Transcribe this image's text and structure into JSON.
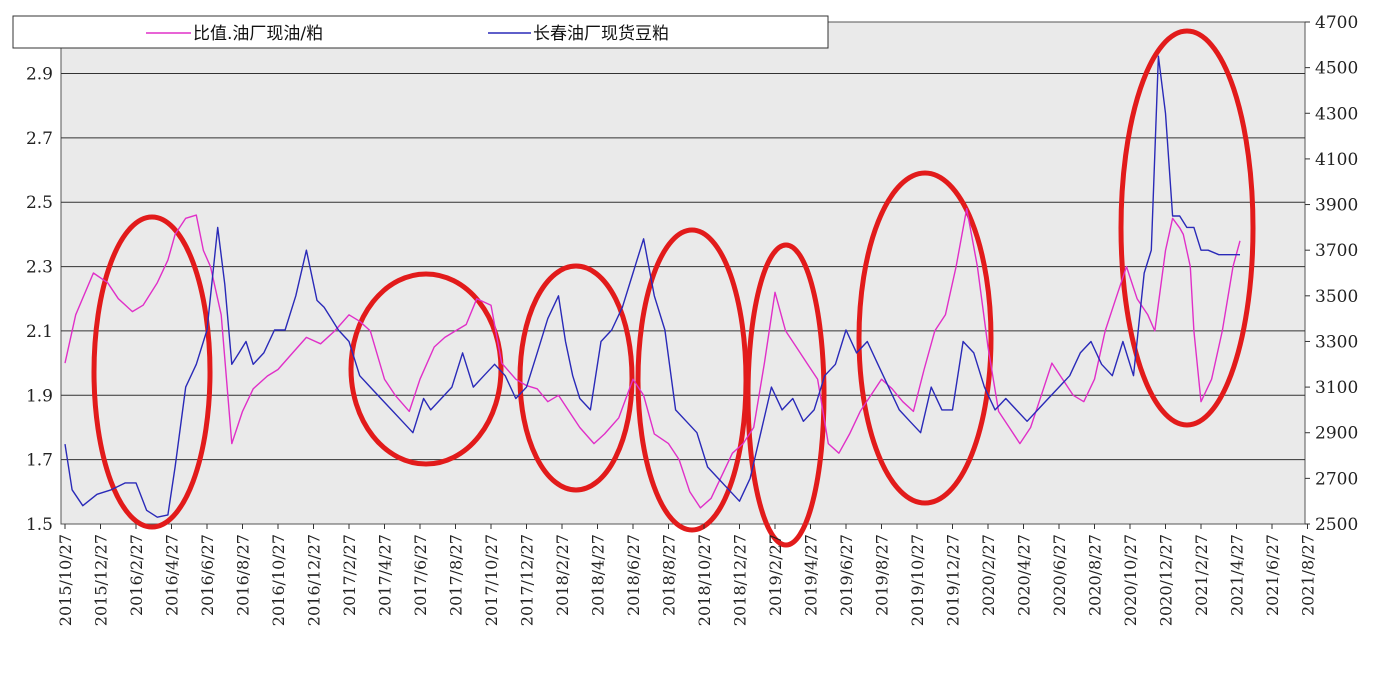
{
  "chart_data": {
    "type": "line",
    "title": "",
    "xlabel": "",
    "ylabel_left": "",
    "ylabel_right": "",
    "y_left": {
      "ylim": [
        1.5,
        3.06
      ],
      "ticks": [
        1.5,
        1.7,
        1.9,
        2.1,
        2.3,
        2.5,
        2.7,
        2.9
      ]
    },
    "y_right": {
      "ylim": [
        2500,
        4700
      ],
      "ticks": [
        2500,
        2700,
        2900,
        3100,
        3300,
        3500,
        3700,
        3900,
        4100,
        4300,
        4500,
        4700
      ]
    },
    "x_ticks": [
      "2015/10/27",
      "2015/12/27",
      "2016/2/27",
      "2016/4/27",
      "2016/6/27",
      "2016/8/27",
      "2016/10/27",
      "2016/12/27",
      "2017/2/27",
      "2017/4/27",
      "2017/6/27",
      "2017/8/27",
      "2017/10/27",
      "2017/12/27",
      "2018/2/27",
      "2018/4/27",
      "2018/6/27",
      "2018/8/27",
      "2018/10/27",
      "2018/12/27",
      "2019/2/27",
      "2019/4/27",
      "2019/6/27",
      "2019/8/27",
      "2019/10/27",
      "2019/12/27",
      "2020/2/27",
      "2020/4/27",
      "2020/6/27",
      "2020/8/27",
      "2020/10/27",
      "2020/12/27",
      "2021/2/27",
      "2021/4/27",
      "2021/6/27",
      "2021/8/27"
    ],
    "grid": "horizontal",
    "legend_position": "top-left",
    "series": [
      {
        "name": "比值.油厂现油/粕",
        "axis": "left",
        "color": "#e030c8",
        "x": [
          0,
          0.3,
          0.8,
          1.2,
          1.5,
          1.9,
          2.2,
          2.6,
          2.9,
          3.1,
          3.4,
          3.7,
          3.9,
          4.1,
          4.4,
          4.7,
          5.0,
          5.3,
          5.7,
          6.0,
          6.4,
          6.8,
          7.2,
          7.6,
          8.0,
          8.3,
          8.6,
          9.0,
          9.3,
          9.7,
          10.0,
          10.4,
          10.7,
          11.0,
          11.3,
          11.6,
          12.0,
          12.3,
          12.7,
          13.0,
          13.3,
          13.6,
          13.9,
          14.2,
          14.5,
          14.9,
          15.2,
          15.6,
          16.0,
          16.3,
          16.6,
          17.0,
          17.3,
          17.6,
          17.9,
          18.2,
          18.5,
          18.8,
          19.1,
          19.4,
          19.7,
          20.0,
          20.3,
          20.6,
          20.9,
          21.2,
          21.5,
          21.8,
          22.1,
          22.4,
          22.7,
          23.0,
          23.3,
          23.6,
          23.9,
          24.2,
          24.5,
          24.8,
          25.1,
          25.4,
          25.7,
          26.0,
          26.3,
          26.6,
          26.9,
          27.2,
          27.5,
          27.8,
          28.1,
          28.4,
          28.7,
          29.0,
          29.3,
          29.6,
          29.9,
          30.2,
          30.5,
          30.7,
          31.0,
          31.2,
          31.4,
          31.5,
          31.7,
          31.8,
          32.0,
          32.3,
          32.6,
          32.9,
          33.1
        ],
        "values": [
          2.0,
          2.15,
          2.28,
          2.25,
          2.2,
          2.16,
          2.18,
          2.25,
          2.32,
          2.4,
          2.45,
          2.46,
          2.35,
          2.3,
          2.15,
          1.75,
          1.85,
          1.92,
          1.96,
          1.98,
          2.03,
          2.08,
          2.06,
          2.1,
          2.15,
          2.13,
          2.1,
          1.95,
          1.9,
          1.85,
          1.95,
          2.05,
          2.08,
          2.1,
          2.12,
          2.2,
          2.18,
          2.0,
          1.95,
          1.93,
          1.92,
          1.88,
          1.9,
          1.85,
          1.8,
          1.75,
          1.78,
          1.83,
          1.95,
          1.9,
          1.78,
          1.75,
          1.7,
          1.6,
          1.55,
          1.58,
          1.65,
          1.72,
          1.75,
          1.8,
          2.0,
          2.22,
          2.1,
          2.05,
          2.0,
          1.95,
          1.75,
          1.72,
          1.78,
          1.85,
          1.9,
          1.95,
          1.92,
          1.88,
          1.85,
          1.98,
          2.1,
          2.15,
          2.3,
          2.48,
          2.3,
          2.05,
          1.85,
          1.8,
          1.75,
          1.8,
          1.9,
          2.0,
          1.95,
          1.9,
          1.88,
          1.95,
          2.1,
          2.2,
          2.3,
          2.2,
          2.15,
          2.1,
          2.35,
          2.45,
          2.42,
          2.4,
          2.3,
          2.1,
          1.88,
          1.95,
          2.1,
          2.3,
          2.38
        ]
      },
      {
        "name": "长春油厂现货豆粕",
        "axis": "right",
        "color": "#2a2ab8",
        "x": [
          0,
          0.2,
          0.5,
          0.9,
          1.3,
          1.7,
          2.0,
          2.3,
          2.6,
          2.9,
          3.1,
          3.4,
          3.7,
          4.0,
          4.3,
          4.5,
          4.7,
          4.9,
          5.1,
          5.3,
          5.6,
          5.9,
          6.2,
          6.5,
          6.8,
          7.1,
          7.3,
          7.5,
          7.7,
          8.0,
          8.3,
          8.6,
          8.9,
          9.2,
          9.5,
          9.8,
          10.1,
          10.3,
          10.6,
          10.9,
          11.2,
          11.5,
          11.8,
          12.1,
          12.4,
          12.7,
          13.0,
          13.3,
          13.6,
          13.9,
          14.1,
          14.3,
          14.5,
          14.8,
          15.1,
          15.4,
          15.7,
          16.0,
          16.3,
          16.6,
          16.9,
          17.2,
          17.5,
          17.8,
          18.1,
          18.4,
          18.7,
          19.0,
          19.3,
          19.6,
          19.9,
          20.2,
          20.5,
          20.8,
          21.1,
          21.4,
          21.7,
          22.0,
          22.3,
          22.6,
          22.9,
          23.2,
          23.5,
          23.8,
          24.1,
          24.4,
          24.7,
          25.0,
          25.3,
          25.6,
          25.9,
          26.2,
          26.5,
          26.8,
          27.1,
          27.4,
          27.7,
          28.0,
          28.3,
          28.6,
          28.9,
          29.2,
          29.5,
          29.8,
          30.1,
          30.4,
          30.6,
          30.8,
          31.0,
          31.2,
          31.4,
          31.6,
          31.8,
          32.0,
          32.2,
          32.5,
          32.8,
          33.1
        ],
        "values": [
          2850,
          2650,
          2580,
          2630,
          2650,
          2680,
          2680,
          2560,
          2530,
          2540,
          2750,
          3100,
          3200,
          3350,
          3800,
          3550,
          3200,
          3250,
          3300,
          3200,
          3250,
          3350,
          3350,
          3500,
          3700,
          3480,
          3450,
          3400,
          3350,
          3300,
          3150,
          3100,
          3050,
          3000,
          2950,
          2900,
          3050,
          3000,
          3050,
          3100,
          3250,
          3100,
          3150,
          3200,
          3150,
          3050,
          3100,
          3250,
          3400,
          3500,
          3300,
          3150,
          3050,
          3000,
          3300,
          3350,
          3450,
          3600,
          3750,
          3500,
          3350,
          3000,
          2950,
          2900,
          2750,
          2700,
          2650,
          2600,
          2700,
          2900,
          3100,
          3000,
          3050,
          2950,
          3000,
          3150,
          3200,
          3350,
          3250,
          3300,
          3200,
          3100,
          3000,
          2950,
          2900,
          3100,
          3000,
          3000,
          3300,
          3250,
          3100,
          3000,
          3050,
          3000,
          2950,
          3000,
          3050,
          3100,
          3150,
          3250,
          3300,
          3200,
          3150,
          3300,
          3150,
          3600,
          3700,
          4550,
          4300,
          3850,
          3850,
          3800,
          3800,
          3700,
          3700,
          3680,
          3680,
          3680
        ]
      }
    ],
    "highlights": [
      {
        "color": "#e21b1b"
      },
      {
        "color": "#e21b1b"
      },
      {
        "color": "#e21b1b"
      },
      {
        "color": "#e21b1b"
      },
      {
        "color": "#e21b1b"
      },
      {
        "color": "#e21b1b"
      },
      {
        "color": "#e21b1b"
      },
      {
        "color": "#22b022"
      }
    ]
  }
}
